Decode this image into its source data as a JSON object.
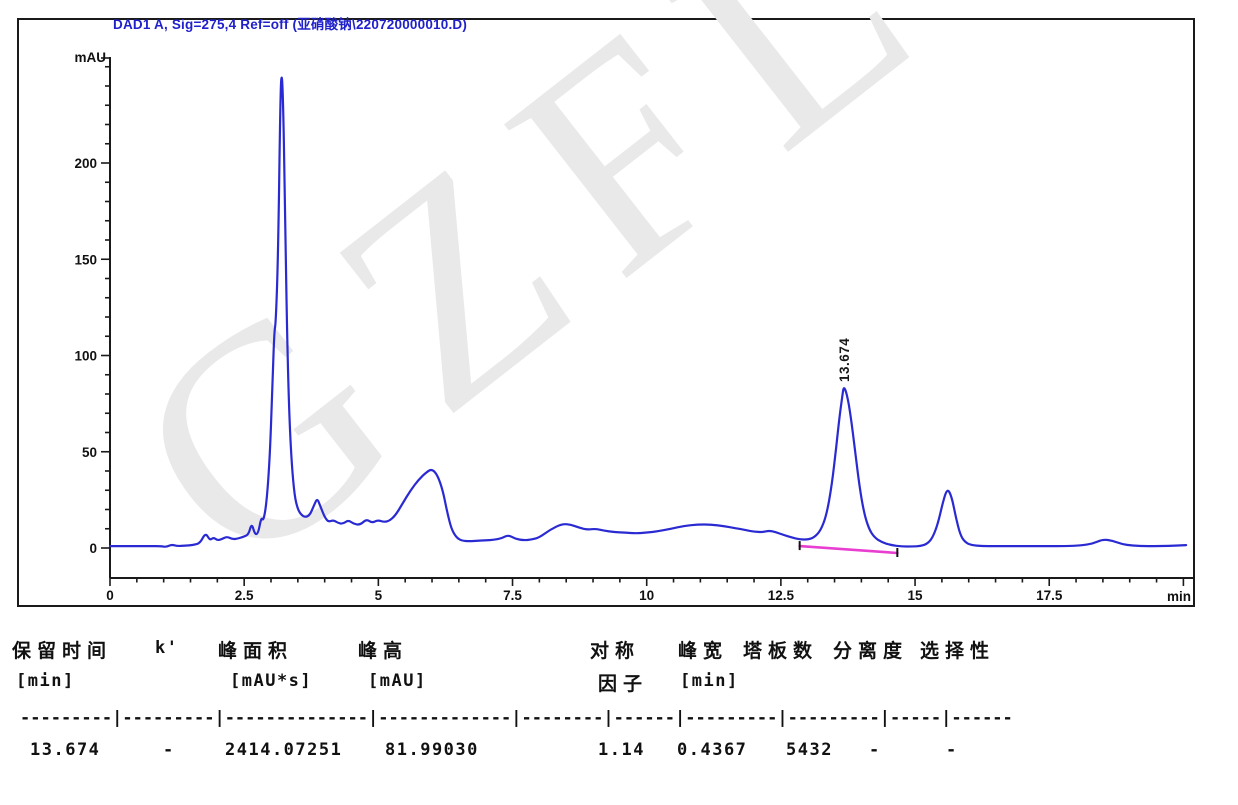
{
  "title": "DAD1 A, Sig=275,4 Ref=off (亚硝酸钠\\220720000010.D)",
  "watermark": "GZFL",
  "colors": {
    "trace": "#2a2ad2",
    "integration_baseline": "#e93fd1",
    "axis": "#1a1a1a",
    "title_blue": "#2121cc"
  },
  "peak_annotation": "13.674",
  "chart_data": {
    "type": "line",
    "title": "DAD1 A, Sig=275,4 Ref=off (亚硝酸钠\\220720000010.D)",
    "xlabel": "min",
    "ylabel": "mAU",
    "xlim": [
      0,
      20.1
    ],
    "ylim": [
      -15,
      255
    ],
    "x_ticks": [
      0,
      2.5,
      5,
      7.5,
      10,
      12.5,
      15,
      17.5
    ],
    "x_minor_step": 0.5,
    "y_ticks": [
      0,
      50,
      100,
      150,
      200
    ],
    "y_minor_step": 10,
    "grid": "off",
    "legend": "none",
    "annotated_peak": {
      "retention_min": 13.674,
      "apex_mau": 84,
      "label": "13.674"
    },
    "integration_baseline": {
      "from": [
        12.85,
        1.0
      ],
      "to": [
        14.67,
        -2.6
      ]
    },
    "series": [
      {
        "name": "DAD1 A",
        "points": [
          [
            0,
            1
          ],
          [
            0.25,
            1
          ],
          [
            0.5,
            1
          ],
          [
            0.75,
            1
          ],
          [
            0.95,
            1
          ],
          [
            1.05,
            0.5
          ],
          [
            1.15,
            1.8
          ],
          [
            1.25,
            1
          ],
          [
            1.4,
            1.2
          ],
          [
            1.55,
            1.5
          ],
          [
            1.68,
            2.5
          ],
          [
            1.78,
            8
          ],
          [
            1.86,
            4
          ],
          [
            1.93,
            5.5
          ],
          [
            2.0,
            4
          ],
          [
            2.08,
            4.5
          ],
          [
            2.18,
            6
          ],
          [
            2.28,
            4.5
          ],
          [
            2.4,
            5
          ],
          [
            2.5,
            6
          ],
          [
            2.58,
            7
          ],
          [
            2.64,
            13
          ],
          [
            2.7,
            7
          ],
          [
            2.76,
            7.5
          ],
          [
            2.82,
            16
          ],
          [
            2.86,
            14
          ],
          [
            2.92,
            24
          ],
          [
            2.98,
            48
          ],
          [
            3.02,
            80
          ],
          [
            3.06,
            112
          ],
          [
            3.09,
            117
          ],
          [
            3.13,
            150
          ],
          [
            3.17,
            225
          ],
          [
            3.19,
            247
          ],
          [
            3.22,
            240
          ],
          [
            3.26,
            180
          ],
          [
            3.3,
            110
          ],
          [
            3.34,
            68
          ],
          [
            3.39,
            42
          ],
          [
            3.44,
            27
          ],
          [
            3.5,
            20
          ],
          [
            3.57,
            17
          ],
          [
            3.64,
            16
          ],
          [
            3.72,
            17
          ],
          [
            3.8,
            22
          ],
          [
            3.86,
            26
          ],
          [
            3.93,
            21
          ],
          [
            4.0,
            16
          ],
          [
            4.07,
            13.5
          ],
          [
            4.16,
            14.5
          ],
          [
            4.25,
            13
          ],
          [
            4.34,
            12.5
          ],
          [
            4.44,
            14.5
          ],
          [
            4.54,
            12.5
          ],
          [
            4.66,
            12
          ],
          [
            4.78,
            15
          ],
          [
            4.88,
            13
          ],
          [
            4.99,
            14.5
          ],
          [
            5.1,
            13.5
          ],
          [
            5.2,
            14
          ],
          [
            5.32,
            17
          ],
          [
            5.45,
            23
          ],
          [
            5.6,
            30
          ],
          [
            5.75,
            35.5
          ],
          [
            5.9,
            39.5
          ],
          [
            6.0,
            41
          ],
          [
            6.1,
            38
          ],
          [
            6.2,
            30
          ],
          [
            6.28,
            19
          ],
          [
            6.36,
            10
          ],
          [
            6.45,
            5.5
          ],
          [
            6.55,
            3.8
          ],
          [
            6.7,
            3.5
          ],
          [
            6.85,
            3.8
          ],
          [
            7.0,
            4
          ],
          [
            7.15,
            4.2
          ],
          [
            7.3,
            5
          ],
          [
            7.42,
            6.8
          ],
          [
            7.55,
            4.8
          ],
          [
            7.7,
            4
          ],
          [
            7.85,
            4.3
          ],
          [
            8.0,
            5.5
          ],
          [
            8.2,
            9.5
          ],
          [
            8.42,
            12.5
          ],
          [
            8.58,
            12.2
          ],
          [
            8.75,
            10.5
          ],
          [
            8.9,
            9.5
          ],
          [
            9.05,
            10
          ],
          [
            9.2,
            9
          ],
          [
            9.4,
            8.2
          ],
          [
            9.6,
            8
          ],
          [
            9.8,
            7.6
          ],
          [
            10.0,
            8
          ],
          [
            10.2,
            8.6
          ],
          [
            10.45,
            10
          ],
          [
            10.7,
            11.5
          ],
          [
            10.95,
            12.2
          ],
          [
            11.2,
            12.2
          ],
          [
            11.45,
            11.3
          ],
          [
            11.65,
            10.3
          ],
          [
            11.85,
            9.3
          ],
          [
            12.0,
            8.5
          ],
          [
            12.15,
            8.2
          ],
          [
            12.28,
            9
          ],
          [
            12.4,
            8.3
          ],
          [
            12.55,
            6.8
          ],
          [
            12.7,
            5.5
          ],
          [
            12.85,
            4.5
          ],
          [
            13.0,
            4.3
          ],
          [
            13.12,
            5.5
          ],
          [
            13.24,
            9
          ],
          [
            13.35,
            17
          ],
          [
            13.45,
            33
          ],
          [
            13.53,
            52
          ],
          [
            13.6,
            70
          ],
          [
            13.65,
            80
          ],
          [
            13.674,
            84
          ],
          [
            13.73,
            80
          ],
          [
            13.8,
            69
          ],
          [
            13.88,
            51
          ],
          [
            13.96,
            33
          ],
          [
            14.05,
            18
          ],
          [
            14.14,
            10
          ],
          [
            14.24,
            5.5
          ],
          [
            14.38,
            3
          ],
          [
            14.55,
            1.5
          ],
          [
            14.75,
            0.8
          ],
          [
            14.95,
            0.8
          ],
          [
            15.1,
            1
          ],
          [
            15.22,
            2
          ],
          [
            15.32,
            5
          ],
          [
            15.42,
            12
          ],
          [
            15.52,
            24
          ],
          [
            15.6,
            31
          ],
          [
            15.68,
            27
          ],
          [
            15.76,
            16
          ],
          [
            15.84,
            7
          ],
          [
            15.93,
            3
          ],
          [
            16.05,
            1.5
          ],
          [
            16.25,
            1
          ],
          [
            16.5,
            1
          ],
          [
            16.8,
            1
          ],
          [
            17.1,
            1
          ],
          [
            17.45,
            1
          ],
          [
            17.8,
            1
          ],
          [
            18.1,
            1.3
          ],
          [
            18.3,
            2.2
          ],
          [
            18.5,
            4.5
          ],
          [
            18.68,
            3.8
          ],
          [
            18.85,
            2
          ],
          [
            19.05,
            1.2
          ],
          [
            19.3,
            1
          ],
          [
            19.6,
            1
          ],
          [
            19.85,
            1.2
          ],
          [
            20.05,
            1.5
          ]
        ]
      }
    ]
  },
  "table": {
    "headers": {
      "rt": "保留时间",
      "rt_unit": "[min]",
      "k": "k'",
      "area": "峰面积",
      "area_unit": "[mAU*s]",
      "height": "峰高",
      "height_unit": "[mAU]",
      "sym1": "对称",
      "sym2": "因子",
      "width": "峰宽",
      "width_unit": "[min]",
      "plates": "塔板数",
      "resolution": "分离度",
      "selectivity": "选择性"
    },
    "separator": "---------|---------|--------------|-------------|--------|------|---------|---------|-----|------",
    "row": {
      "rt": "13.674",
      "k": "-",
      "area": "2414.07251",
      "height": "81.99030",
      "sym": "1.14",
      "width": "0.4367",
      "plates": "5432",
      "resolution": "-",
      "selectivity": "-"
    }
  }
}
